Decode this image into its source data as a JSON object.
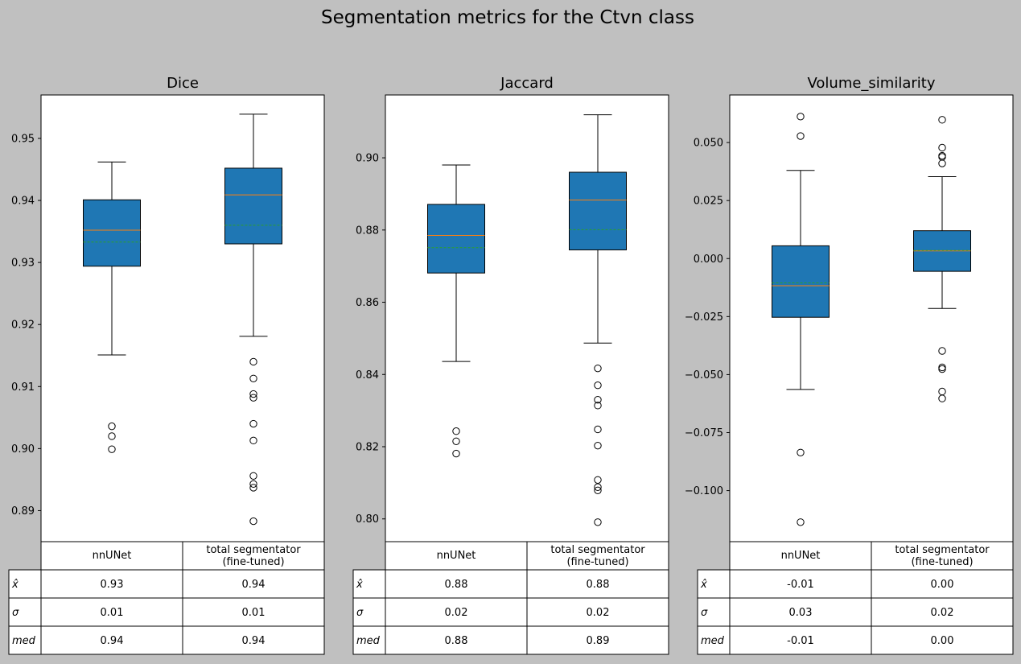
{
  "figure_title": "Segmentation metrics for the Ctvn class",
  "colors": {
    "background": "#c0c0c0",
    "box": "#1f77b4",
    "median": "#ff7f0e",
    "mean": "#2ca02c"
  },
  "chart_data": [
    {
      "type": "box",
      "title": "Dice",
      "ylim": [
        0.885,
        0.957
      ],
      "yticks": [
        0.89,
        0.9,
        0.91,
        0.92,
        0.93,
        0.94,
        0.95
      ],
      "ytick_labels": [
        "0.89",
        "0.90",
        "0.91",
        "0.92",
        "0.93",
        "0.94",
        "0.95"
      ],
      "series": [
        {
          "name": "nnUNet",
          "whislo": 0.9151,
          "q1": 0.9294,
          "med": 0.9352,
          "mean": 0.9333,
          "q3": 0.9401,
          "whishi": 0.9462,
          "fliers": [
            0.9036,
            0.902,
            0.8999
          ]
        },
        {
          "name": "total segmentator\n(fine-tuned)",
          "whislo": 0.9181,
          "q1": 0.933,
          "med": 0.9409,
          "mean": 0.936,
          "q3": 0.9452,
          "whishi": 0.9539,
          "fliers": [
            0.914,
            0.9113,
            0.9088,
            0.9082,
            0.904,
            0.9013,
            0.8956,
            0.8943,
            0.8937,
            0.8883
          ]
        }
      ],
      "table": {
        "columns": [
          "nnUNet",
          "total segmentator\n(fine-tuned)"
        ],
        "rows": [
          {
            "label": "x̂",
            "values": [
              "0.93",
              "0.94"
            ]
          },
          {
            "label": "σ",
            "values": [
              "0.01",
              "0.01"
            ]
          },
          {
            "label": "med",
            "values": [
              "0.94",
              "0.94"
            ]
          }
        ]
      }
    },
    {
      "type": "box",
      "title": "Jaccard",
      "ylim": [
        0.7937,
        0.9174
      ],
      "yticks": [
        0.8,
        0.82,
        0.84,
        0.86,
        0.88,
        0.9
      ],
      "ytick_labels": [
        "0.80",
        "0.82",
        "0.84",
        "0.86",
        "0.88",
        "0.90"
      ],
      "series": [
        {
          "name": "nnUNet",
          "whislo": 0.8436,
          "q1": 0.8681,
          "med": 0.8785,
          "mean": 0.8751,
          "q3": 0.8871,
          "whishi": 0.898,
          "fliers": [
            0.8243,
            0.8215,
            0.8181
          ]
        },
        {
          "name": "total segmentator\n(fine-tuned)",
          "whislo": 0.8487,
          "q1": 0.8745,
          "med": 0.8883,
          "mean": 0.8801,
          "q3": 0.896,
          "whishi": 0.9119,
          "fliers": [
            0.8417,
            0.837,
            0.833,
            0.8314,
            0.8248,
            0.8203,
            0.8108,
            0.8088,
            0.8079,
            0.7991
          ]
        }
      ],
      "table": {
        "columns": [
          "nnUNet",
          "total segmentator\n(fine-tuned)"
        ],
        "rows": [
          {
            "label": "x̂",
            "values": [
              "0.88",
              "0.88"
            ]
          },
          {
            "label": "σ",
            "values": [
              "0.02",
              "0.02"
            ]
          },
          {
            "label": "med",
            "values": [
              "0.88",
              "0.89"
            ]
          }
        ]
      }
    },
    {
      "type": "box",
      "title": "Volume_similarity",
      "ylim": [
        -0.122,
        0.0705
      ],
      "yticks": [
        -0.1,
        -0.075,
        -0.05,
        -0.025,
        0.0,
        0.025,
        0.05
      ],
      "ytick_labels": [
        "−0.100",
        "−0.075",
        "−0.050",
        "−0.025",
        "0.000",
        "0.025",
        "0.050"
      ],
      "series": [
        {
          "name": "nnUNet",
          "whislo": -0.0564,
          "q1": -0.0253,
          "med": -0.0117,
          "mean": -0.0105,
          "q3": 0.0055,
          "whishi": 0.038,
          "fliers": [
            0.0612,
            0.0528,
            -0.0836,
            -0.1136
          ]
        },
        {
          "name": "total segmentator\n(fine-tuned)",
          "whislo": -0.0215,
          "q1": -0.0055,
          "med": 0.0033,
          "mean": 0.0035,
          "q3": 0.012,
          "whishi": 0.0353,
          "fliers": [
            0.0598,
            0.0478,
            0.0443,
            0.0438,
            0.041,
            -0.0398,
            -0.0469,
            -0.0476,
            -0.0573,
            -0.0603
          ]
        }
      ],
      "table": {
        "columns": [
          "nnUNet",
          "total segmentator\n(fine-tuned)"
        ],
        "rows": [
          {
            "label": "x̂",
            "values": [
              "-0.01",
              "0.00"
            ]
          },
          {
            "label": "σ",
            "values": [
              "0.03",
              "0.02"
            ]
          },
          {
            "label": "med",
            "values": [
              "-0.01",
              "0.00"
            ]
          }
        ]
      }
    }
  ]
}
